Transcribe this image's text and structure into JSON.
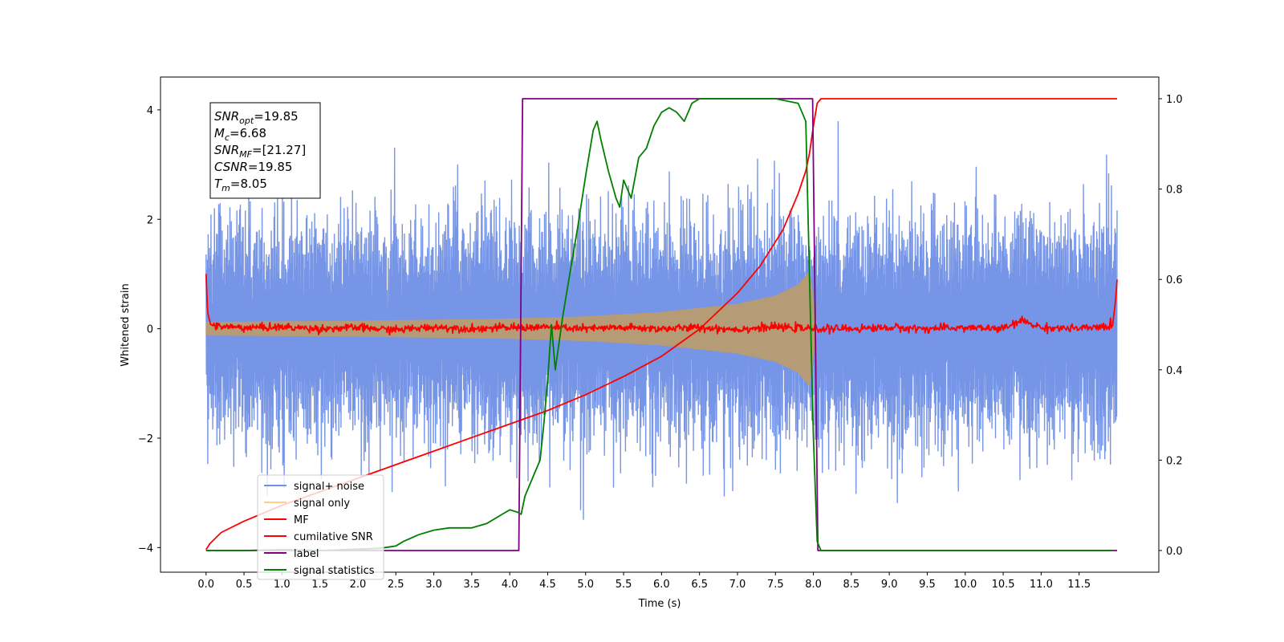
{
  "chart_data": {
    "type": "line",
    "title": "",
    "xlabel": "Time (s)",
    "ylabel": "Whitened strain",
    "xlim": [
      -0.6,
      12.55
    ],
    "ylim": [
      -4.45,
      4.6
    ],
    "y2lim": [
      -0.048,
      1.048
    ],
    "x_ticks": [
      "0.0",
      "0.5",
      "1.0",
      "1.5",
      "2.0",
      "2.5",
      "3.0",
      "3.5",
      "4.0",
      "4.5",
      "5.0",
      "5.5",
      "6.0",
      "6.5",
      "7.0",
      "7.5",
      "8.0",
      "8.5",
      "9.0",
      "9.5",
      "10.0",
      "10.5",
      "11.0",
      "11.5"
    ],
    "y_ticks": [
      "4",
      "2",
      "0",
      "−2",
      "−4"
    ],
    "y2_ticks": [
      "1.0",
      "0.8",
      "0.6",
      "0.4",
      "0.2",
      "0.0"
    ],
    "grid": false,
    "legend": {
      "placement": "lower-left",
      "entries": [
        {
          "name": "signal+ noise",
          "color": "#6f8fe6"
        },
        {
          "name": "signal only",
          "color": "#ffd080"
        },
        {
          "name": "MF",
          "color": "#ff0000"
        },
        {
          "name": "cumilative SNR",
          "color": "#ff0000"
        },
        {
          "name": "label",
          "color": "#800080"
        },
        {
          "name": "signal statistics",
          "color": "#008000"
        }
      ]
    },
    "annotation": [
      {
        "var": "SNR",
        "sub": "opt",
        "value": "=19.85"
      },
      {
        "var": "M",
        "sub": "c",
        "value": "=6.68"
      },
      {
        "var": "SNR",
        "sub": "MF",
        "value": "=[21.27]"
      },
      {
        "var": "CSNR",
        "sub": "",
        "value": "=19.85"
      },
      {
        "var": "T",
        "sub": "m",
        "value": "=8.05"
      }
    ],
    "noise": {
      "color": "#6f8fe6",
      "x_range": [
        0.0,
        12.0
      ],
      "typical_range": [
        -1.5,
        1.8
      ],
      "peak_max": 4.15,
      "peak_min": -4.0
    },
    "signal_only": {
      "color": "#b89b70",
      "x_range": [
        0.0,
        8.05
      ],
      "envelope": {
        "x": [
          0.0,
          1.0,
          2.0,
          3.0,
          4.0,
          5.0,
          6.0,
          7.0,
          7.5,
          7.8,
          7.95,
          8.05
        ],
        "y": [
          0.12,
          0.13,
          0.14,
          0.16,
          0.18,
          0.22,
          0.3,
          0.45,
          0.6,
          0.8,
          1.05,
          0.0
        ]
      }
    },
    "series": [
      {
        "name": "MF",
        "axis": "left",
        "color": "#ff0000",
        "x": [
          0.0,
          0.02,
          0.06,
          0.1,
          0.5,
          1.0,
          1.5,
          2.0,
          2.5,
          3.0,
          3.5,
          4.0,
          4.5,
          5.0,
          5.5,
          6.0,
          6.5,
          7.0,
          7.5,
          8.0,
          8.5,
          9.0,
          9.5,
          10.0,
          10.5,
          10.75,
          11.0,
          11.5,
          11.94,
          11.98,
          12.0
        ],
        "y": [
          1.0,
          0.3,
          0.08,
          0.05,
          0.02,
          0.03,
          0.0,
          0.02,
          -0.02,
          0.03,
          0.0,
          0.02,
          0.03,
          0.0,
          0.02,
          0.0,
          0.02,
          -0.01,
          0.03,
          0.0,
          0.0,
          0.02,
          0.0,
          0.02,
          0.0,
          0.15,
          0.02,
          0.0,
          0.05,
          0.5,
          0.9
        ]
      },
      {
        "name": "cumilative SNR",
        "axis": "right",
        "color": "#ff0000",
        "x": [
          0.0,
          0.05,
          0.2,
          0.5,
          1.0,
          1.5,
          2.0,
          2.5,
          3.0,
          3.5,
          4.0,
          4.5,
          5.0,
          5.5,
          6.0,
          6.5,
          7.0,
          7.3,
          7.6,
          7.8,
          7.9,
          7.95,
          8.0,
          8.05,
          8.1,
          9.0,
          10.0,
          11.0,
          11.5,
          12.0
        ],
        "y": [
          0.002,
          0.015,
          0.04,
          0.065,
          0.1,
          0.13,
          0.16,
          0.19,
          0.22,
          0.25,
          0.28,
          0.31,
          0.345,
          0.385,
          0.43,
          0.49,
          0.57,
          0.63,
          0.71,
          0.79,
          0.84,
          0.88,
          0.94,
          0.99,
          1.0,
          1.0,
          1.0,
          1.0,
          1.0,
          1.0
        ]
      },
      {
        "name": "label",
        "axis": "right",
        "color": "#800080",
        "x": [
          0.0,
          4.12,
          4.17,
          7.99,
          8.06,
          12.0
        ],
        "y": [
          0.0,
          0.0,
          1.0,
          1.0,
          0.0,
          0.0
        ]
      },
      {
        "name": "signal statistics",
        "axis": "right",
        "color": "#008000",
        "x": [
          0.0,
          0.5,
          1.0,
          1.5,
          2.0,
          2.3,
          2.5,
          2.6,
          2.8,
          3.0,
          3.2,
          3.5,
          3.7,
          3.9,
          4.0,
          4.1,
          4.15,
          4.2,
          4.3,
          4.4,
          4.45,
          4.5,
          4.55,
          4.6,
          4.7,
          4.8,
          4.9,
          5.0,
          5.1,
          5.15,
          5.2,
          5.3,
          5.4,
          5.45,
          5.5,
          5.55,
          5.6,
          5.7,
          5.8,
          5.9,
          6.0,
          6.1,
          6.2,
          6.3,
          6.4,
          6.5,
          6.7,
          7.0,
          7.5,
          7.8,
          7.9,
          7.95,
          8.0,
          8.05,
          8.1,
          8.2,
          9.0,
          10.0,
          11.0,
          11.5,
          11.94
        ],
        "y": [
          0.0,
          0.0,
          0.002,
          0.0,
          0.003,
          0.005,
          0.01,
          0.02,
          0.035,
          0.045,
          0.05,
          0.05,
          0.06,
          0.08,
          0.09,
          0.085,
          0.08,
          0.12,
          0.16,
          0.2,
          0.28,
          0.38,
          0.5,
          0.4,
          0.52,
          0.62,
          0.72,
          0.83,
          0.93,
          0.95,
          0.91,
          0.84,
          0.78,
          0.76,
          0.82,
          0.8,
          0.78,
          0.87,
          0.89,
          0.94,
          0.97,
          0.98,
          0.97,
          0.95,
          0.99,
          1.0,
          1.0,
          1.0,
          1.0,
          0.99,
          0.95,
          0.6,
          0.25,
          0.02,
          0.0,
          0.0,
          0.0,
          0.0,
          0.0,
          0.0,
          0.0
        ]
      }
    ]
  }
}
